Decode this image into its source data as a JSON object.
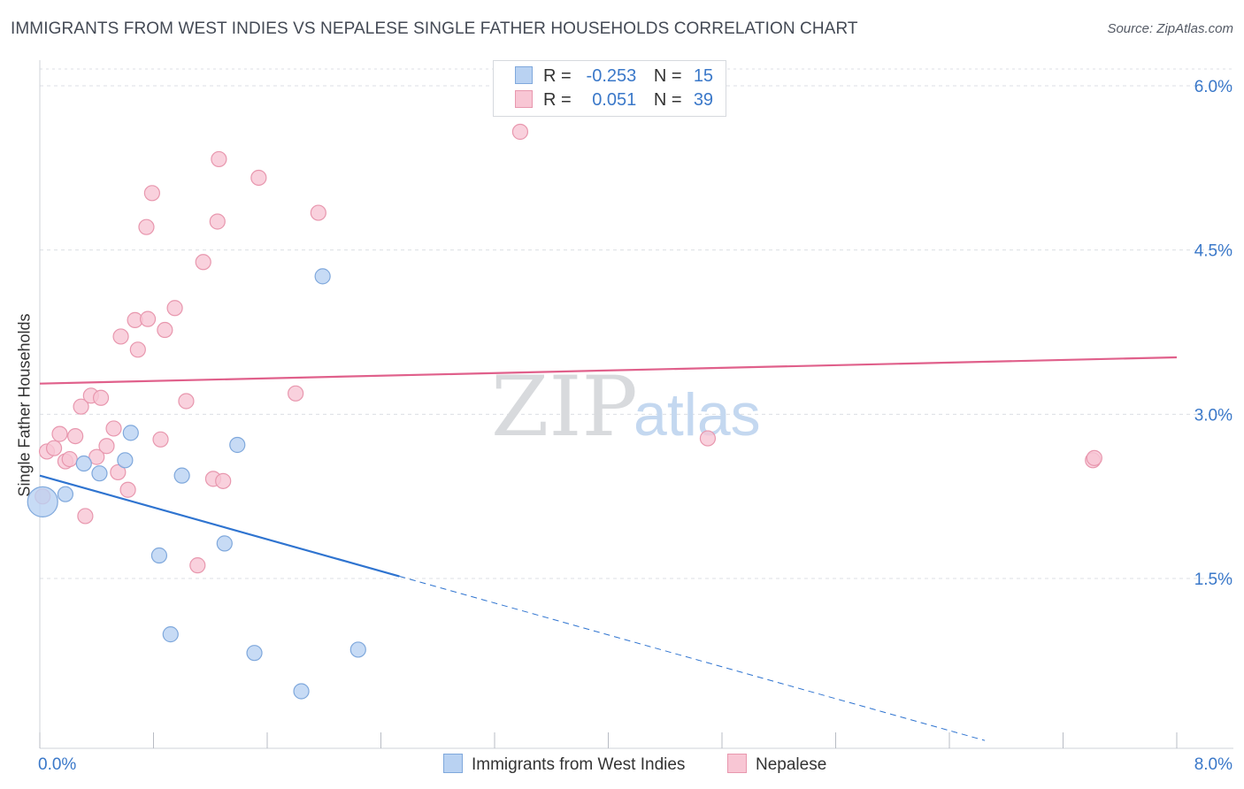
{
  "title": "IMMIGRANTS FROM WEST INDIES VS NEPALESE SINGLE FATHER HOUSEHOLDS CORRELATION CHART",
  "source": "Source: ZipAtlas.com",
  "watermark": {
    "zip": "ZIP",
    "atlas": "atlas"
  },
  "legend": {
    "rows": [
      {
        "r_label": "R =",
        "r_value": "-0.253",
        "n_label": "N =",
        "n_value": "15"
      },
      {
        "r_label": "R =",
        "r_value": "0.051",
        "n_label": "N =",
        "n_value": "39"
      }
    ]
  },
  "bottom_legend": [
    "Immigrants from West Indies",
    "Nepalese"
  ],
  "colors": {
    "blue_fill": "#b9d2f2",
    "blue_stroke": "#7fa8dc",
    "blue_line": "#2f74d0",
    "pink_fill": "#f8c6d4",
    "pink_stroke": "#e897ae",
    "pink_line": "#e0608b",
    "axis_label": "#3a78c9",
    "grid": "#dcdfe4"
  },
  "chart_data": {
    "type": "scatter",
    "title": "IMMIGRANTS FROM WEST INDIES VS NEPALESE SINGLE FATHER HOUSEHOLDS CORRELATION CHART",
    "xlabel": "",
    "ylabel": "Single Father Households",
    "xlim": [
      0,
      8
    ],
    "ylim": [
      0,
      6.2
    ],
    "x_tick_labels": [
      "0.0%",
      "8.0%"
    ],
    "y_ticks": [
      1.5,
      3.0,
      4.5,
      6.0
    ],
    "y_tick_labels": [
      "1.5%",
      "3.0%",
      "4.5%",
      "6.0%"
    ],
    "grid": true,
    "series": [
      {
        "name": "Immigrants from West Indies",
        "color": "blue",
        "R": -0.253,
        "N": 15,
        "points": [
          {
            "x": 0.02,
            "y": 2.2,
            "big": true
          },
          {
            "x": 0.18,
            "y": 2.27
          },
          {
            "x": 0.31,
            "y": 2.55
          },
          {
            "x": 0.42,
            "y": 2.46
          },
          {
            "x": 0.6,
            "y": 2.58
          },
          {
            "x": 0.64,
            "y": 2.83
          },
          {
            "x": 0.84,
            "y": 1.71
          },
          {
            "x": 0.92,
            "y": 0.99
          },
          {
            "x": 1.0,
            "y": 2.44
          },
          {
            "x": 1.3,
            "y": 1.82
          },
          {
            "x": 1.39,
            "y": 2.72
          },
          {
            "x": 1.51,
            "y": 0.82
          },
          {
            "x": 1.84,
            "y": 0.47
          },
          {
            "x": 1.99,
            "y": 4.26
          },
          {
            "x": 2.24,
            "y": 0.85
          }
        ],
        "trend": {
          "x0": 0.0,
          "y0": 2.44,
          "x1": 2.53,
          "y1": 1.52,
          "x_dash_end": 6.65,
          "y_dash_end": 0.02
        }
      },
      {
        "name": "Nepalese",
        "color": "pink",
        "R": 0.051,
        "N": 39,
        "points": [
          {
            "x": 0.02,
            "y": 2.25
          },
          {
            "x": 0.05,
            "y": 2.66
          },
          {
            "x": 0.1,
            "y": 2.69
          },
          {
            "x": 0.14,
            "y": 2.82
          },
          {
            "x": 0.18,
            "y": 2.57
          },
          {
            "x": 0.21,
            "y": 2.59
          },
          {
            "x": 0.25,
            "y": 2.8
          },
          {
            "x": 0.29,
            "y": 3.07
          },
          {
            "x": 0.32,
            "y": 2.07
          },
          {
            "x": 0.36,
            "y": 3.17
          },
          {
            "x": 0.4,
            "y": 2.61
          },
          {
            "x": 0.43,
            "y": 3.15
          },
          {
            "x": 0.47,
            "y": 2.71
          },
          {
            "x": 0.52,
            "y": 2.87
          },
          {
            "x": 0.55,
            "y": 2.47
          },
          {
            "x": 0.57,
            "y": 3.71
          },
          {
            "x": 0.62,
            "y": 2.31
          },
          {
            "x": 0.67,
            "y": 3.86
          },
          {
            "x": 0.69,
            "y": 3.59
          },
          {
            "x": 0.75,
            "y": 4.71
          },
          {
            "x": 0.76,
            "y": 3.87
          },
          {
            "x": 0.79,
            "y": 5.02
          },
          {
            "x": 0.85,
            "y": 2.77
          },
          {
            "x": 0.88,
            "y": 3.77
          },
          {
            "x": 0.95,
            "y": 3.97
          },
          {
            "x": 1.03,
            "y": 3.12
          },
          {
            "x": 1.11,
            "y": 1.62
          },
          {
            "x": 1.15,
            "y": 4.39
          },
          {
            "x": 1.22,
            "y": 2.41
          },
          {
            "x": 1.25,
            "y": 4.76
          },
          {
            "x": 1.26,
            "y": 5.33
          },
          {
            "x": 1.29,
            "y": 2.39
          },
          {
            "x": 1.54,
            "y": 5.16
          },
          {
            "x": 1.8,
            "y": 3.19
          },
          {
            "x": 1.96,
            "y": 4.84
          },
          {
            "x": 3.38,
            "y": 5.58
          },
          {
            "x": 4.7,
            "y": 2.78
          },
          {
            "x": 7.41,
            "y": 2.58
          },
          {
            "x": 7.42,
            "y": 2.6
          }
        ],
        "trend": {
          "x0": 0.0,
          "y0": 3.28,
          "x1": 8.0,
          "y1": 3.52
        }
      }
    ]
  }
}
